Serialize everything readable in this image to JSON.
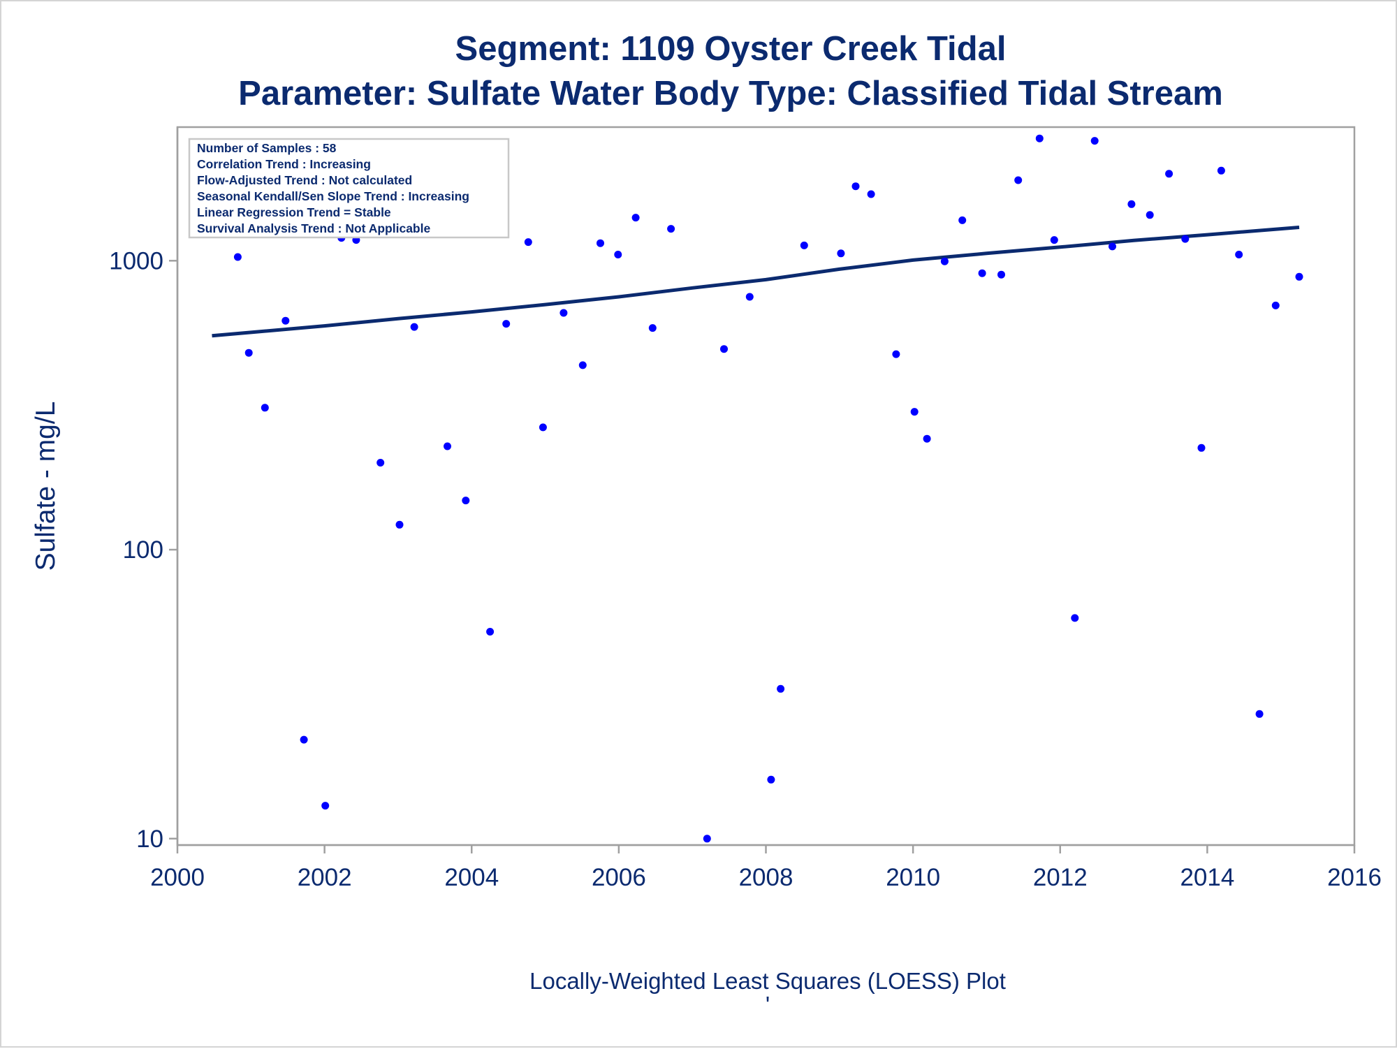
{
  "colors": {
    "text": "#0b2a6f",
    "points": "#0000ff",
    "trend_line": "#0b2a6f",
    "frame": "#a0a0a0"
  },
  "titles": {
    "line1": "Segment: 1109  Oyster Creek Tidal",
    "line2": "Parameter: Sulfate   Water Body Type: Classified Tidal Stream"
  },
  "info_box": [
    "Number of Samples : 58",
    "Correlation Trend : Increasing",
    "Flow-Adjusted Trend : Not calculated",
    "Seasonal Kendall/Sen Slope Trend : Increasing",
    "Linear Regression Trend = Stable",
    "Survival Analysis Trend : Not Applicable"
  ],
  "footnote": "Locally-Weighted Least Squares (LOESS) Plot",
  "footnote_mark": "'",
  "chart_data": {
    "type": "scatter",
    "ylabel": "Sulfate - mg/L",
    "xlabel": "",
    "x_scale": "linear",
    "y_scale": "log",
    "xlim": [
      2000,
      2016
    ],
    "ylim": [
      9.5,
      2900
    ],
    "x_ticks": [
      2000,
      2002,
      2004,
      2006,
      2008,
      2010,
      2012,
      2014,
      2016
    ],
    "y_ticks": [
      10,
      100,
      1000
    ],
    "x_tick_labels": [
      "2000",
      "2002",
      "2004",
      "2006",
      "2008",
      "2010",
      "2012",
      "2014",
      "2016"
    ],
    "y_tick_labels": [
      "10",
      "100",
      "1000"
    ],
    "grid": false,
    "series": [
      {
        "kind": "points",
        "x": [
          2000.47,
          2000.82,
          2000.97,
          2001.19,
          2001.47,
          2001.72,
          2002.01,
          2002.23,
          2002.43,
          2002.76,
          2003.02,
          2003.22,
          2003.47,
          2003.67,
          2003.92,
          2004.25,
          2004.47,
          2004.77,
          2004.97,
          2005.25,
          2005.51,
          2005.75,
          2005.99,
          2006.23,
          2006.46,
          2006.71,
          2007.2,
          2007.43,
          2007.78,
          2008.07,
          2008.2,
          2008.52,
          2009.02,
          2009.22,
          2009.43,
          2009.77,
          2010.02,
          2010.19,
          2010.43,
          2010.67,
          2010.94,
          2011.2,
          2011.43,
          2011.72,
          2011.92,
          2012.2,
          2012.47,
          2012.71,
          2012.97,
          2013.22,
          2013.48,
          2013.7,
          2013.92,
          2014.19,
          2014.43,
          2014.71,
          2014.93,
          2015.25
        ],
        "y": [
          1560,
          1030,
          480,
          310,
          620,
          22,
          13,
          1200,
          1180,
          200,
          122,
          590,
          1310,
          228,
          148,
          52,
          605,
          1160,
          265,
          660,
          435,
          1150,
          1050,
          1410,
          585,
          1290,
          10,
          495,
          750,
          16,
          33,
          1130,
          1060,
          1810,
          1700,
          475,
          300,
          242,
          995,
          1380,
          905,
          895,
          1900,
          2650,
          1180,
          58,
          2600,
          1120,
          1570,
          1440,
          2000,
          1190,
          225,
          2050,
          1050,
          27,
          700,
          880
        ]
      },
      {
        "kind": "line",
        "name": "",
        "x": [
          2000.47,
          2001.0,
          2002.0,
          2003.0,
          2004.0,
          2005.0,
          2006.0,
          2007.0,
          2008.0,
          2009.0,
          2010.0,
          2011.0,
          2012.0,
          2013.0,
          2014.0,
          2015.25
        ],
        "y": [
          550,
          565,
          595,
          630,
          665,
          705,
          750,
          805,
          860,
          935,
          1005,
          1060,
          1115,
          1175,
          1230,
          1305
        ]
      }
    ]
  }
}
